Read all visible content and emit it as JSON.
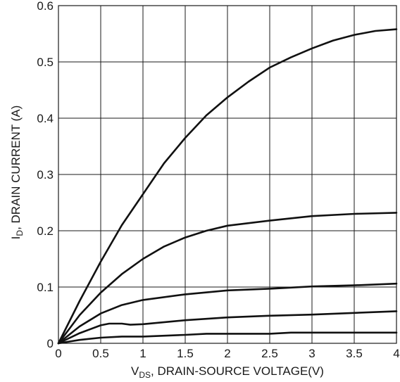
{
  "chart_data": {
    "type": "line",
    "title": "",
    "xlabel": {
      "main": "V",
      "sub": "DS",
      "rest": ", DRAIN-SOURCE VOLTAGE(V)"
    },
    "ylabel": {
      "main": "I",
      "sub": "D",
      "rest": ", DRAIN CURRENT (A)"
    },
    "xlim": [
      0,
      4
    ],
    "ylim": [
      0,
      0.6
    ],
    "xticks": [
      0,
      0.5,
      1,
      1.5,
      2,
      2.5,
      3,
      3.5,
      4
    ],
    "xtick_labels": [
      "0",
      "0.5",
      "1",
      "1.5",
      "2",
      "2.5",
      "3",
      "3.5",
      "4"
    ],
    "yticks": [
      0,
      0.1,
      0.2,
      0.3,
      0.4,
      0.5,
      0.6
    ],
    "ytick_labels": [
      "0",
      "0.1",
      "0.2",
      "0.3",
      "0.4",
      "0.5",
      "0.6"
    ],
    "grid": true,
    "legend": "none",
    "series": [
      {
        "x": [
          0,
          0.25,
          0.5,
          0.75,
          1,
          1.25,
          1.5,
          1.75,
          2,
          2.25,
          2.5,
          2.75,
          3,
          3.25,
          3.5,
          3.75,
          4
        ],
        "y": [
          0,
          0.075,
          0.145,
          0.21,
          0.265,
          0.32,
          0.365,
          0.405,
          0.437,
          0.465,
          0.49,
          0.508,
          0.524,
          0.538,
          0.548,
          0.555,
          0.558
        ]
      },
      {
        "x": [
          0,
          0.25,
          0.5,
          0.75,
          1,
          1.25,
          1.5,
          1.75,
          2,
          2.5,
          3,
          3.5,
          4
        ],
        "y": [
          0,
          0.05,
          0.09,
          0.123,
          0.15,
          0.172,
          0.188,
          0.2,
          0.209,
          0.218,
          0.226,
          0.23,
          0.232
        ]
      },
      {
        "x": [
          0,
          0.25,
          0.5,
          0.75,
          1,
          1.5,
          2,
          2.5,
          2.75,
          3,
          3.5,
          4
        ],
        "y": [
          0,
          0.03,
          0.053,
          0.068,
          0.077,
          0.087,
          0.094,
          0.097,
          0.099,
          0.101,
          0.103,
          0.106
        ]
      },
      {
        "x": [
          0,
          0.25,
          0.5,
          0.6,
          0.75,
          0.85,
          1,
          1.5,
          2,
          2.5,
          3,
          3.5,
          4
        ],
        "y": [
          0,
          0.018,
          0.032,
          0.035,
          0.035,
          0.033,
          0.034,
          0.041,
          0.046,
          0.049,
          0.051,
          0.054,
          0.057
        ]
      },
      {
        "x": [
          0,
          0.25,
          0.5,
          0.75,
          1,
          1.5,
          1.75,
          2,
          2.5,
          2.75,
          3,
          3.5,
          4
        ],
        "y": [
          0,
          0.006,
          0.01,
          0.012,
          0.012,
          0.015,
          0.017,
          0.017,
          0.017,
          0.019,
          0.019,
          0.019,
          0.019
        ]
      }
    ]
  }
}
